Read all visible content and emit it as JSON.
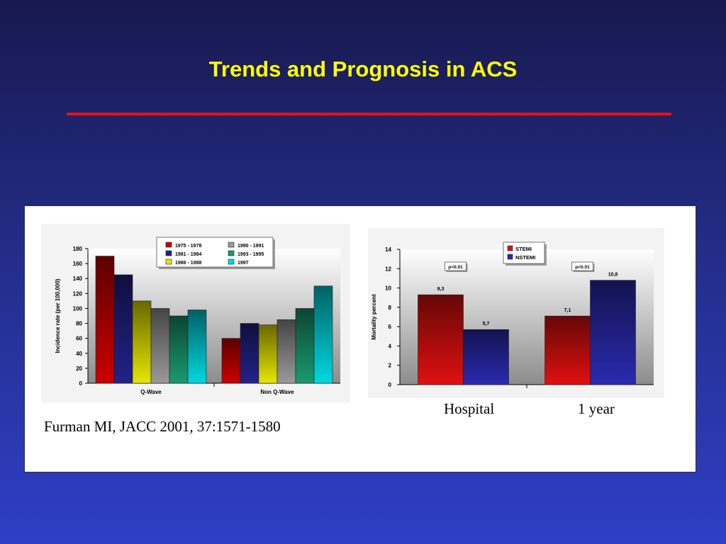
{
  "slide": {
    "title": "Trends and Prognosis in ACS",
    "citation": "Furman MI, JACC 2001, 37:1571-1580",
    "x_category_labels": [
      "Hospital",
      "1 year"
    ]
  },
  "colors": {
    "background_top": "#17194e",
    "background_bottom": "#2f3fc6",
    "title": "#ffff00",
    "rule": "#e8101a"
  },
  "chart_data": [
    {
      "type": "bar",
      "categories": [
        "Q-Wave",
        "Non Q-Wave"
      ],
      "series": [
        {
          "name": "1975 - 1978",
          "color": "#cc0000",
          "values": [
            170,
            60
          ]
        },
        {
          "name": "1981 - 1984",
          "color": "#22228a",
          "values": [
            145,
            80
          ]
        },
        {
          "name": "1986 - 1988",
          "color": "#e6e600",
          "values": [
            110,
            78
          ]
        },
        {
          "name": "1990 - 1991",
          "color": "#9a9a9a",
          "values": [
            100,
            85
          ]
        },
        {
          "name": "1993 - 1995",
          "color": "#1a9a70",
          "values": [
            90,
            100
          ]
        },
        {
          "name": "1997",
          "color": "#00d8e0",
          "values": [
            98,
            130
          ]
        }
      ],
      "ylabel": "Incidence rate (per 100,000)",
      "ylim": [
        0,
        180
      ],
      "yticks": [
        0,
        20,
        40,
        60,
        80,
        100,
        120,
        140,
        160,
        180
      ],
      "legend": "top"
    },
    {
      "type": "bar",
      "categories": [
        "Hospital",
        "1 year"
      ],
      "series": [
        {
          "name": "STEMI",
          "color": "#e01010",
          "values": [
            9.3,
            7.1
          ],
          "labels": [
            "9,3",
            "7,1"
          ]
        },
        {
          "name": "NSTEMI",
          "color": "#2a2ab0",
          "values": [
            5.7,
            10.8
          ],
          "labels": [
            "5,7",
            "10,8"
          ]
        }
      ],
      "annotations": [
        "p<0.01",
        "p<0.01"
      ],
      "ylabel": "Mortality percent",
      "ylim": [
        0,
        14
      ],
      "yticks": [
        0,
        2,
        4,
        6,
        8,
        10,
        12,
        14
      ],
      "legend": "top"
    }
  ]
}
